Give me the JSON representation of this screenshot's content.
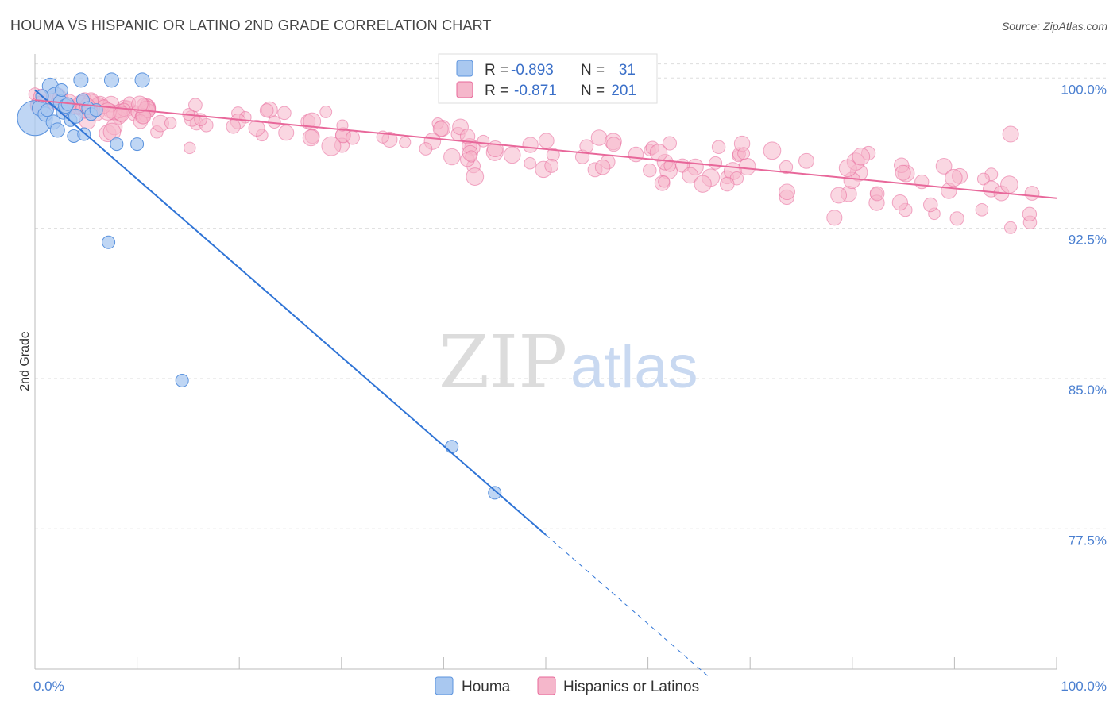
{
  "title": "HOUMA VS HISPANIC OR LATINO 2ND GRADE CORRELATION CHART",
  "source": "Source: ZipAtlas.com",
  "watermark": {
    "zip": "ZIP",
    "atlas": "atlas"
  },
  "colors": {
    "blue": "#5b93de",
    "blue_fill": "#a9c8f0",
    "pink": "#e8679a",
    "pink_fill": "#f5b7cb",
    "grid": "#dddddd",
    "tick": "#4a7fd0"
  },
  "legend": {
    "r_label": "R =",
    "n_label": "N =",
    "rows": [
      {
        "r": "-0.893",
        "n": "31"
      },
      {
        "r": "-0.871",
        "n": "201"
      }
    ]
  },
  "chart_data": {
    "type": "scatter",
    "title": "HOUMA VS HISPANIC OR LATINO 2ND GRADE CORRELATION CHART",
    "xlabel": "",
    "ylabel": "2nd Grade",
    "xlim": [
      0,
      100
    ],
    "ylim": [
      70.5,
      101.2
    ],
    "x_tick_labels": [
      "0.0%",
      "100.0%"
    ],
    "y_ticks": [
      100.0,
      92.5,
      85.0,
      77.5
    ],
    "y_tick_labels": [
      "100.0%",
      "92.5%",
      "85.0%",
      "77.5%"
    ],
    "series": [
      {
        "name": "Houma",
        "r": -0.893,
        "n": 31,
        "trend": {
          "x0": 0,
          "y0": 99.4,
          "x1": 50,
          "y1": 77.2,
          "dashed_to_x": 66
        },
        "points": [
          [
            0,
            98.0,
            22
          ],
          [
            0.5,
            98.5,
            10
          ],
          [
            1,
            98.2,
            9
          ],
          [
            1.5,
            99.6,
            10
          ],
          [
            1.8,
            97.8,
            9
          ],
          [
            2,
            99.1,
            11
          ],
          [
            2.2,
            97.4,
            9
          ],
          [
            2.5,
            98.8,
            9
          ],
          [
            2.8,
            98.3,
            9
          ],
          [
            3,
            98.6,
            9
          ],
          [
            3.5,
            97.9,
            8
          ],
          [
            3.8,
            97.1,
            8
          ],
          [
            4,
            98.1,
            9
          ],
          [
            4.5,
            99.9,
            9
          ],
          [
            4.7,
            98.9,
            8
          ],
          [
            4.8,
            97.2,
            8
          ],
          [
            5.2,
            98.5,
            8
          ],
          [
            5.5,
            98.2,
            8
          ],
          [
            7.5,
            99.9,
            9
          ],
          [
            8,
            96.7,
            8
          ],
          [
            10.5,
            99.9,
            9
          ],
          [
            10,
            96.7,
            8
          ],
          [
            7.2,
            91.8,
            8
          ],
          [
            14.4,
            84.9,
            8
          ],
          [
            40.8,
            81.6,
            8
          ],
          [
            45.0,
            79.3,
            8
          ],
          [
            0.7,
            99.1,
            8
          ],
          [
            1.2,
            98.4,
            8
          ],
          [
            2.6,
            99.4,
            8
          ],
          [
            3.2,
            98.7,
            8
          ],
          [
            6.0,
            98.4,
            8
          ]
        ]
      },
      {
        "name": "Hispanics or Latinos",
        "r": -0.871,
        "n": 201,
        "trend": {
          "x0": 0,
          "y0": 98.9,
          "x1": 100,
          "y1": 94.0
        }
      }
    ]
  },
  "bottom_legend": [
    {
      "label": "Houma"
    },
    {
      "label": "Hispanics or Latinos"
    }
  ]
}
